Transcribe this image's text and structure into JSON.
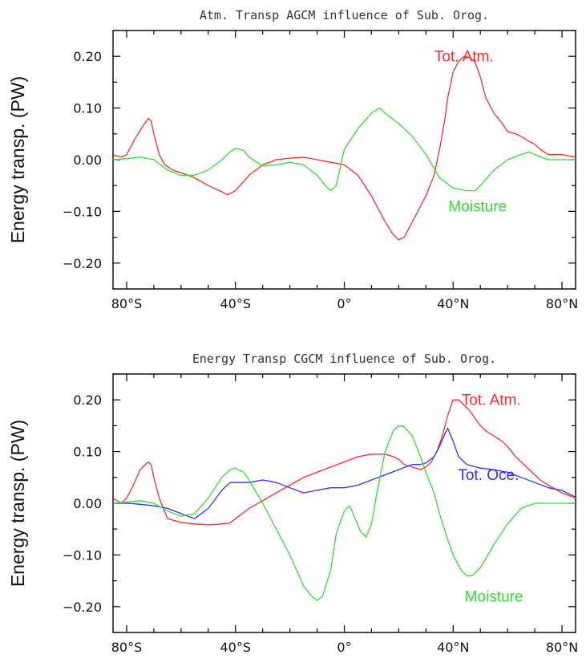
{
  "chart_data": [
    {
      "type": "line",
      "title": "Atm. Transp AGCM influence of Sub. Orog.",
      "ylabel": "Energy transp. (PW)",
      "xlabel": "",
      "xlim": [
        -85,
        85
      ],
      "ylim": [
        -0.25,
        0.25
      ],
      "xticks": [
        -80,
        -40,
        0,
        40,
        80
      ],
      "xtick_labels": [
        "80°S",
        "40°S",
        "0°",
        "40°N",
        "80°N"
      ],
      "yticks": [
        0.2,
        0.1,
        0.0,
        -0.1,
        -0.2
      ],
      "ytick_labels": [
        "0.20",
        "0.10",
        "0.00",
        "−0.10",
        "−0.20"
      ],
      "grid": false,
      "series": [
        {
          "name": "Tot. Atm.",
          "color": "#ff2a2a",
          "label_pos": [
            44,
            0.19
          ],
          "x": [
            -85,
            -82,
            -80,
            -77,
            -74,
            -72,
            -71,
            -70,
            -68,
            -66,
            -63,
            -60,
            -55,
            -50,
            -45,
            -43,
            -40,
            -35,
            -30,
            -25,
            -20,
            -15,
            -10,
            -5,
            0,
            5,
            10,
            15,
            18,
            20,
            22,
            25,
            28,
            30,
            33,
            35,
            37,
            38,
            40,
            42,
            44,
            46,
            48,
            50,
            52,
            55,
            58,
            60,
            63,
            65,
            68,
            70,
            72,
            75,
            80,
            85
          ],
          "y": [
            0.01,
            0.005,
            0.01,
            0.04,
            0.065,
            0.08,
            0.075,
            0.05,
            0.01,
            -0.01,
            -0.02,
            -0.025,
            -0.035,
            -0.05,
            -0.062,
            -0.068,
            -0.06,
            -0.03,
            -0.01,
            0.0,
            0.003,
            0.005,
            0.0,
            -0.005,
            -0.01,
            -0.03,
            -0.07,
            -0.12,
            -0.145,
            -0.155,
            -0.15,
            -0.12,
            -0.09,
            -0.07,
            -0.03,
            0.02,
            0.08,
            0.12,
            0.17,
            0.19,
            0.2,
            0.198,
            0.19,
            0.16,
            0.12,
            0.09,
            0.07,
            0.055,
            0.05,
            0.045,
            0.035,
            0.03,
            0.02,
            0.01,
            0.01,
            0.005
          ]
        },
        {
          "name": "Moisture",
          "color": "#33dd33",
          "label_pos": [
            49,
            -0.1
          ],
          "x": [
            -85,
            -80,
            -75,
            -70,
            -65,
            -60,
            -55,
            -50,
            -45,
            -42,
            -40,
            -37,
            -35,
            -30,
            -25,
            -20,
            -15,
            -10,
            -7,
            -5,
            -3,
            0,
            5,
            10,
            13,
            15,
            20,
            25,
            30,
            35,
            40,
            45,
            48,
            50,
            55,
            60,
            65,
            68,
            70,
            75,
            80,
            85
          ],
          "y": [
            0.0,
            0.002,
            0.005,
            0.0,
            -0.02,
            -0.03,
            -0.03,
            -0.02,
            0.0,
            0.015,
            0.022,
            0.018,
            0.005,
            -0.012,
            -0.01,
            -0.005,
            -0.01,
            -0.03,
            -0.05,
            -0.06,
            -0.05,
            0.02,
            0.06,
            0.09,
            0.1,
            0.09,
            0.07,
            0.045,
            0.01,
            -0.035,
            -0.055,
            -0.06,
            -0.06,
            -0.05,
            -0.02,
            0.0,
            0.01,
            0.015,
            0.01,
            0.0,
            0.0,
            0.0
          ]
        }
      ]
    },
    {
      "type": "line",
      "title": "Energy Transp CGCM influence of Sub. Orog.",
      "ylabel": "Energy transp. (PW)",
      "xlabel": "",
      "xlim": [
        -85,
        85
      ],
      "ylim": [
        -0.25,
        0.25
      ],
      "xticks": [
        -80,
        -40,
        0,
        40,
        80
      ],
      "xtick_labels": [
        "80°S",
        "40°S",
        "0°",
        "40°N",
        "80°N"
      ],
      "yticks": [
        0.2,
        0.1,
        0.0,
        -0.1,
        -0.2
      ],
      "ytick_labels": [
        "0.20",
        "0.10",
        "0.00",
        "−0.10",
        "−0.20"
      ],
      "grid": false,
      "series": [
        {
          "name": "Tot. Atm.",
          "color": "#ff2a2a",
          "label_pos": [
            54,
            0.19
          ],
          "x": [
            -85,
            -82,
            -80,
            -78,
            -75,
            -72,
            -71,
            -70,
            -68,
            -65,
            -60,
            -55,
            -50,
            -45,
            -42,
            -40,
            -35,
            -30,
            -25,
            -20,
            -15,
            -10,
            -5,
            0,
            5,
            10,
            15,
            18,
            20,
            22,
            25,
            28,
            30,
            32,
            34,
            36,
            38,
            40,
            42,
            44,
            46,
            48,
            50,
            52,
            55,
            58,
            60,
            63,
            65,
            68,
            70,
            72,
            75,
            80,
            85
          ],
          "y": [
            0.01,
            0.0,
            0.01,
            0.03,
            0.065,
            0.08,
            0.075,
            0.05,
            0.01,
            -0.03,
            -0.037,
            -0.04,
            -0.042,
            -0.04,
            -0.038,
            -0.03,
            -0.01,
            0.005,
            0.02,
            0.035,
            0.05,
            0.06,
            0.07,
            0.08,
            0.09,
            0.095,
            0.095,
            0.09,
            0.085,
            0.075,
            0.07,
            0.065,
            0.07,
            0.08,
            0.1,
            0.13,
            0.17,
            0.2,
            0.2,
            0.19,
            0.18,
            0.165,
            0.15,
            0.14,
            0.13,
            0.12,
            0.11,
            0.09,
            0.08,
            0.065,
            0.055,
            0.045,
            0.035,
            0.02,
            0.01
          ]
        },
        {
          "name": "Tot. Oce.",
          "color": "#2f2fff",
          "label_pos": [
            53,
            0.045
          ],
          "x": [
            -85,
            -80,
            -75,
            -70,
            -65,
            -60,
            -55,
            -50,
            -45,
            -42,
            -40,
            -35,
            -30,
            -25,
            -20,
            -15,
            -10,
            -5,
            0,
            5,
            10,
            15,
            20,
            25,
            28,
            30,
            33,
            35,
            37,
            38,
            40,
            42,
            45,
            50,
            55,
            60,
            65,
            70,
            75,
            80,
            85
          ],
          "y": [
            0.0,
            0.0,
            -0.002,
            -0.005,
            -0.01,
            -0.02,
            -0.03,
            -0.01,
            0.025,
            0.04,
            0.04,
            0.04,
            0.045,
            0.04,
            0.03,
            0.02,
            0.025,
            0.03,
            0.03,
            0.035,
            0.045,
            0.055,
            0.065,
            0.075,
            0.075,
            0.078,
            0.09,
            0.11,
            0.135,
            0.145,
            0.12,
            0.09,
            0.075,
            0.068,
            0.065,
            0.06,
            0.05,
            0.04,
            0.03,
            0.025,
            0.012
          ]
        },
        {
          "name": "Moisture",
          "color": "#33dd33",
          "label_pos": [
            55,
            -0.19
          ],
          "x": [
            -85,
            -80,
            -75,
            -70,
            -65,
            -60,
            -55,
            -50,
            -45,
            -42,
            -40,
            -37,
            -35,
            -30,
            -25,
            -20,
            -15,
            -12,
            -10,
            -8,
            -5,
            -3,
            0,
            2,
            4,
            6,
            8,
            10,
            12,
            15,
            18,
            20,
            22,
            25,
            28,
            30,
            33,
            35,
            38,
            40,
            43,
            45,
            47,
            50,
            55,
            60,
            65,
            70,
            75,
            80,
            85
          ],
          "y": [
            0.0,
            0.002,
            0.005,
            0.0,
            -0.015,
            -0.025,
            -0.02,
            0.01,
            0.05,
            0.065,
            0.068,
            0.06,
            0.045,
            0.0,
            -0.05,
            -0.1,
            -0.16,
            -0.18,
            -0.188,
            -0.18,
            -0.13,
            -0.06,
            -0.015,
            -0.005,
            -0.03,
            -0.055,
            -0.065,
            -0.04,
            0.02,
            0.1,
            0.14,
            0.15,
            0.148,
            0.13,
            0.09,
            0.06,
            0.02,
            -0.02,
            -0.07,
            -0.1,
            -0.13,
            -0.14,
            -0.14,
            -0.125,
            -0.08,
            -0.04,
            -0.01,
            0.0,
            0.0,
            0.0,
            0.0
          ]
        }
      ]
    }
  ]
}
